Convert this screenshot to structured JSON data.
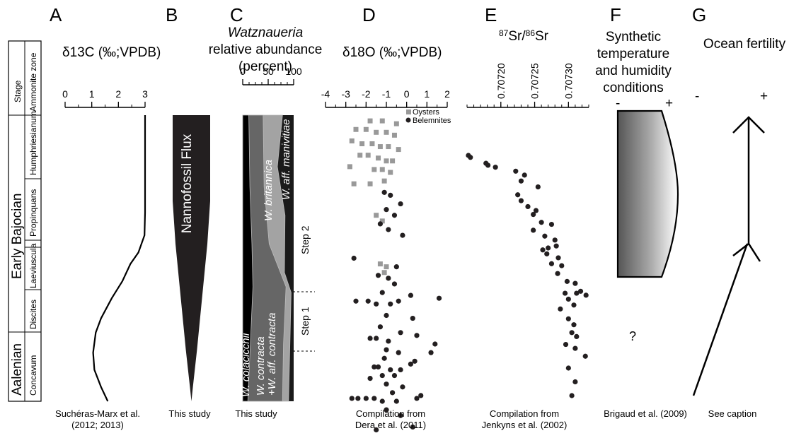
{
  "panels": [
    {
      "letter": "A",
      "title": "δ13C (‰;VPDB)",
      "caption1": "Suchéras-Marx et al.",
      "caption2": "(2012; 2013)"
    },
    {
      "letter": "B",
      "caption1": "This study",
      "label": "Nannofossil Flux"
    },
    {
      "letter": "C",
      "title_italic": "Watznaueria",
      "title2": "relative abundance",
      "title3": "(percent)",
      "caption1": "This study"
    },
    {
      "letter": "D",
      "title": "δ18O (‰;VPDB)",
      "caption1": "Compilation from",
      "caption2": "Dera et al. (2011)"
    },
    {
      "letter": "E",
      "title": "87Sr/86Sr",
      "caption1": "Compilation from",
      "caption2": "Jenkyns et al. (2002)"
    },
    {
      "letter": "F",
      "title1": "Synthetic",
      "title2": "temperature",
      "title3": "and humidity",
      "title4": "conditions",
      "minus": "-",
      "plus": "+",
      "question": "?",
      "caption1": "Brigaud et al. (2009)"
    },
    {
      "letter": "G",
      "title": "Ocean fertility",
      "minus": "-",
      "plus": "+",
      "caption1": "See caption"
    }
  ],
  "strat": {
    "header": [
      "Stage",
      "Ammonite zone"
    ],
    "stages": [
      "Early Bajocian",
      "Aalenian"
    ],
    "zones": [
      "Humphriesianum",
      "Propinquans",
      "Laeviuscula",
      "Discites",
      "Concavum"
    ]
  },
  "species": [
    "W. colacicchii",
    "W. contracta",
    "+W. aff. contracta",
    "W. britannica",
    "W. aff. manivitiae"
  ],
  "steps": [
    "Step 1",
    "Step 2"
  ],
  "legend": [
    {
      "name": "Oysters",
      "color": "#999999"
    },
    {
      "name": "Belemnites",
      "color": "#231f20"
    }
  ],
  "chart_data": [
    {
      "type": "line",
      "title": "δ13C (‰;VPDB)",
      "xlim": [
        0,
        3
      ],
      "x_ticks": [
        "0",
        "1",
        "2",
        "3"
      ],
      "y_axis": "relative stratigraphic position (0 = top of Humphriesianum, 1 = base of Concavum)",
      "points": [
        [
          3.0,
          0.0
        ],
        [
          3.0,
          0.08
        ],
        [
          3.0,
          0.2
        ],
        [
          3.0,
          0.34
        ],
        [
          2.98,
          0.42
        ],
        [
          2.75,
          0.48
        ],
        [
          2.45,
          0.52
        ],
        [
          2.15,
          0.58
        ],
        [
          1.75,
          0.64
        ],
        [
          1.35,
          0.71
        ],
        [
          1.15,
          0.76
        ],
        [
          1.05,
          0.83
        ],
        [
          1.1,
          0.89
        ],
        [
          1.35,
          0.95
        ],
        [
          1.6,
          1.0
        ]
      ]
    },
    {
      "type": "area",
      "label": "Nannofossil Flux",
      "points": [
        [
          1.0,
          0.0
        ],
        [
          1.0,
          0.3
        ],
        [
          0.85,
          0.45
        ],
        [
          0.55,
          0.65
        ],
        [
          0.3,
          0.82
        ],
        [
          0.08,
          0.95
        ],
        [
          0.0,
          1.0
        ]
      ]
    },
    {
      "type": "area",
      "title": "Watznaueria relative abundance (percent)",
      "xlim": [
        0,
        100
      ],
      "x_ticks": [
        "0",
        "50",
        "100"
      ],
      "series": [
        {
          "name": "W. colacicchii",
          "color": "#000000",
          "boundary": [
            [
              12,
              0.0
            ],
            [
              14,
              0.25
            ],
            [
              18,
              0.45
            ],
            [
              20,
              0.6
            ],
            [
              15,
              0.8
            ],
            [
              10,
              1.0
            ]
          ]
        },
        {
          "name": "W. contracta +W. aff. contracta",
          "color": "#666666",
          "boundary": [
            [
              40,
              0.0
            ],
            [
              42,
              0.25
            ],
            [
              52,
              0.45
            ],
            [
              85,
              0.6
            ],
            [
              80,
              0.8
            ],
            [
              78,
              1.0
            ]
          ]
        },
        {
          "name": "W. britannica",
          "color": "#a3a3a3",
          "boundary": [
            [
              78,
              0.0
            ],
            [
              68,
              0.18
            ],
            [
              83,
              0.35
            ],
            [
              82,
              0.55
            ],
            [
              95,
              0.62
            ],
            [
              90,
              1.0
            ]
          ]
        },
        {
          "name": "W. aff. manivitiae",
          "color": "#1a1a1a"
        }
      ]
    },
    {
      "type": "scatter",
      "title": "δ18O (‰;VPDB)",
      "xlim": [
        -4,
        2
      ],
      "x_ticks": [
        "-4",
        "-3",
        "-2",
        "-1",
        "0",
        "1",
        "2"
      ],
      "series": [
        {
          "name": "Oysters",
          "color": "#999999",
          "points": [
            [
              -1.8,
              0.02
            ],
            [
              -1.2,
              0.02
            ],
            [
              -0.5,
              0.03
            ],
            [
              -2.5,
              0.05
            ],
            [
              -2.0,
              0.05
            ],
            [
              -1.5,
              0.06
            ],
            [
              -1.0,
              0.06
            ],
            [
              -0.6,
              0.07
            ],
            [
              -2.7,
              0.09
            ],
            [
              -2.2,
              0.1
            ],
            [
              -1.7,
              0.1
            ],
            [
              -1.3,
              0.11
            ],
            [
              -0.9,
              0.11
            ],
            [
              -0.4,
              0.12
            ],
            [
              -2.3,
              0.14
            ],
            [
              -1.9,
              0.14
            ],
            [
              -1.4,
              0.15
            ],
            [
              -1.0,
              0.16
            ],
            [
              -0.7,
              0.16
            ],
            [
              -2.8,
              0.18
            ],
            [
              -1.6,
              0.19
            ],
            [
              -1.2,
              0.19
            ],
            [
              -0.8,
              0.2
            ],
            [
              -2.6,
              0.24
            ],
            [
              -1.8,
              0.24
            ],
            [
              -1.1,
              0.23
            ],
            [
              -1.5,
              0.35
            ],
            [
              -1.2,
              0.37
            ],
            [
              -1.3,
              0.52
            ],
            [
              -1.0,
              0.53
            ],
            [
              -1.1,
              0.55
            ]
          ]
        },
        {
          "name": "Belemnites",
          "color": "#231f20",
          "points": [
            [
              -1.1,
              0.27
            ],
            [
              -0.8,
              0.28
            ],
            [
              -0.3,
              0.31
            ],
            [
              -1.0,
              0.33
            ],
            [
              -0.6,
              0.35
            ],
            [
              -1.3,
              0.38
            ],
            [
              -0.9,
              0.4
            ],
            [
              -0.2,
              0.42
            ],
            [
              -2.6,
              0.5
            ],
            [
              -0.5,
              0.53
            ],
            [
              -1.4,
              0.56
            ],
            [
              -0.9,
              0.57
            ],
            [
              -0.6,
              0.59
            ],
            [
              -1.2,
              0.62
            ],
            [
              0.2,
              0.63
            ],
            [
              -2.5,
              0.65
            ],
            [
              -1.9,
              0.65
            ],
            [
              -1.5,
              0.66
            ],
            [
              -0.8,
              0.66
            ],
            [
              -0.4,
              0.65
            ],
            [
              1.6,
              0.64
            ],
            [
              -1.0,
              0.7
            ],
            [
              0.3,
              0.71
            ],
            [
              -1.3,
              0.74
            ],
            [
              -0.3,
              0.76
            ],
            [
              0.5,
              0.77
            ],
            [
              -1.8,
              0.78
            ],
            [
              -1.5,
              0.78
            ],
            [
              -0.9,
              0.79
            ],
            [
              1.4,
              0.8
            ],
            [
              -1.0,
              0.82
            ],
            [
              -0.4,
              0.83
            ],
            [
              1.2,
              0.83
            ],
            [
              -1.1,
              0.85
            ],
            [
              0.4,
              0.86
            ],
            [
              -1.6,
              0.88
            ],
            [
              -1.4,
              0.88
            ],
            [
              -0.8,
              0.89
            ],
            [
              -0.3,
              0.89
            ],
            [
              0.2,
              0.87
            ],
            [
              -1.2,
              0.91
            ],
            [
              -0.6,
              0.91
            ],
            [
              -1.8,
              0.92
            ],
            [
              -1.0,
              0.94
            ],
            [
              -0.2,
              0.95
            ],
            [
              -0.7,
              0.97
            ],
            [
              -2.7,
              0.99
            ],
            [
              -2.4,
              0.99
            ],
            [
              -2.0,
              0.99
            ],
            [
              -1.6,
              0.99
            ],
            [
              -1.2,
              1.0
            ],
            [
              -0.5,
              1.0
            ],
            [
              0.5,
              0.99
            ],
            [
              0.7,
              0.98
            ],
            [
              -1.0,
              1.03
            ],
            [
              -0.3,
              1.05
            ],
            [
              -1.5,
              1.1
            ],
            [
              0.3,
              1.09
            ],
            [
              0.0,
              1.15
            ]
          ]
        }
      ]
    },
    {
      "type": "scatter",
      "title": "87Sr/86Sr",
      "xlim": [
        0.70715,
        0.70733
      ],
      "x_ticks": [
        "0.70720",
        "0.70725",
        "0.70730"
      ],
      "series": [
        {
          "name": "Belemnites",
          "color": "#231f20",
          "points": [
            [
              0.707152,
              0.1
            ],
            [
              0.707155,
              0.11
            ],
            [
              0.707178,
              0.14
            ],
            [
              0.707181,
              0.15
            ],
            [
              0.707192,
              0.16
            ],
            [
              0.707222,
              0.18
            ],
            [
              0.707235,
              0.2
            ],
            [
              0.70723,
              0.23
            ],
            [
              0.707255,
              0.26
            ],
            [
              0.707225,
              0.3
            ],
            [
              0.70723,
              0.33
            ],
            [
              0.70724,
              0.36
            ],
            [
              0.707252,
              0.38
            ],
            [
              0.707248,
              0.4
            ],
            [
              0.70726,
              0.44
            ],
            [
              0.707275,
              0.45
            ],
            [
              0.707248,
              0.48
            ],
            [
              0.707265,
              0.51
            ],
            [
              0.70728,
              0.53
            ],
            [
              0.707282,
              0.56
            ],
            [
              0.70727,
              0.57
            ],
            [
              0.707262,
              0.58
            ],
            [
              0.707268,
              0.6
            ],
            [
              0.707285,
              0.62
            ],
            [
              0.707275,
              0.65
            ],
            [
              0.70729,
              0.66
            ],
            [
              0.707284,
              0.7
            ],
            [
              0.707298,
              0.74
            ],
            [
              0.70731,
              0.75
            ],
            [
              0.707318,
              0.79
            ],
            [
              0.707295,
              0.8
            ],
            [
              0.707312,
              0.8
            ],
            [
              0.707326,
              0.81
            ],
            [
              0.7073,
              0.83
            ],
            [
              0.707308,
              0.86
            ],
            [
              0.707288,
              0.88
            ],
            [
              0.7073,
              0.93
            ],
            [
              0.707308,
              0.96
            ],
            [
              0.707305,
              1.0
            ],
            [
              0.707312,
              1.02
            ],
            [
              0.707296,
              1.06
            ],
            [
              0.70731,
              1.08
            ],
            [
              0.707325,
              1.12
            ],
            [
              0.7073,
              1.18
            ],
            [
              0.70731,
              1.25
            ],
            [
              0.707305,
              1.32
            ]
          ]
        }
      ]
    }
  ]
}
